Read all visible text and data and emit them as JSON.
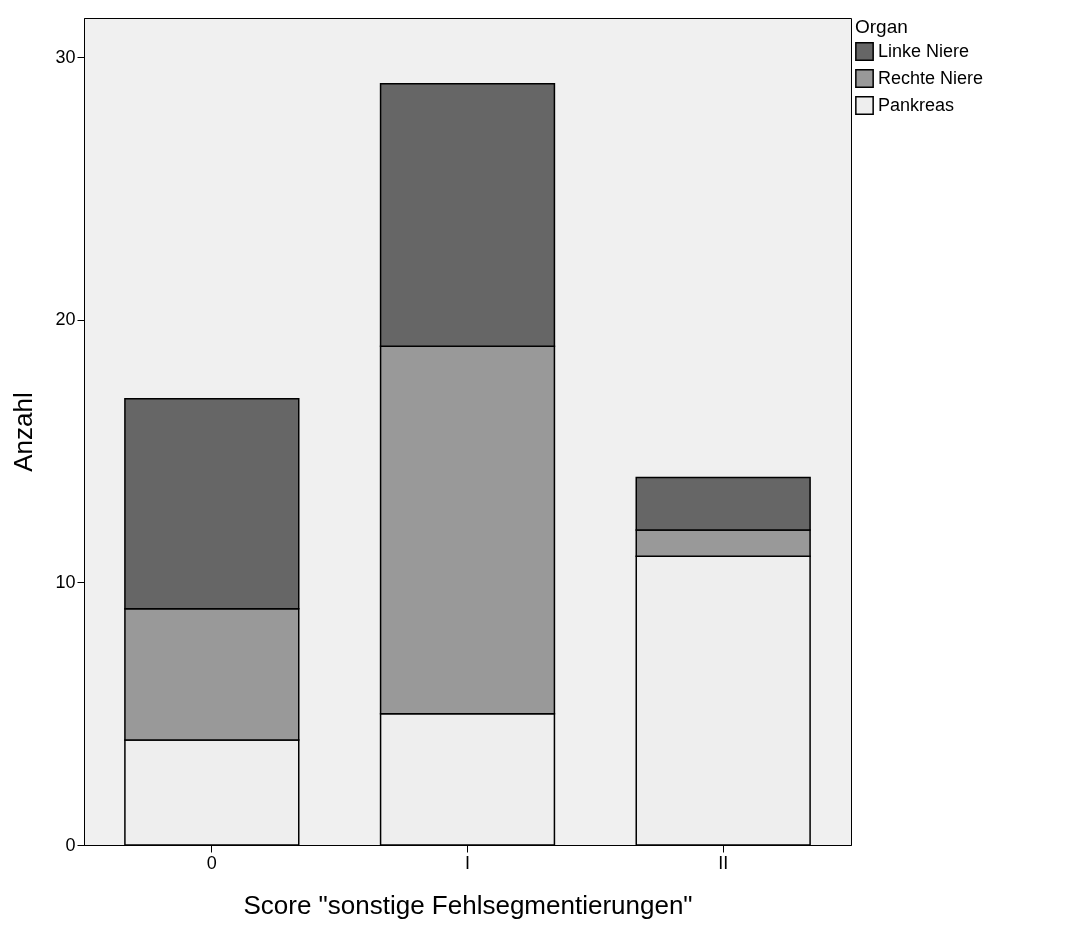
{
  "chart_data": {
    "type": "bar",
    "xlabel": "Score \"sonstige Fehlsegmentierungen\"",
    "ylabel": "Anzahl",
    "legend_title": "Organ",
    "categories": [
      "0",
      "I",
      "II"
    ],
    "stacked": true,
    "series": [
      {
        "name": "Pankreas",
        "color": "#eeeeee",
        "values": [
          4,
          5,
          11
        ]
      },
      {
        "name": "Rechte Niere",
        "color": "#999999",
        "values": [
          5,
          14,
          1
        ]
      },
      {
        "name": "Linke Niere",
        "color": "#666666",
        "values": [
          8,
          10,
          2
        ]
      }
    ],
    "ylim": [
      0,
      31.5
    ],
    "yticks": [
      0,
      10,
      20,
      30
    ],
    "grid": false,
    "legend": "top right"
  }
}
